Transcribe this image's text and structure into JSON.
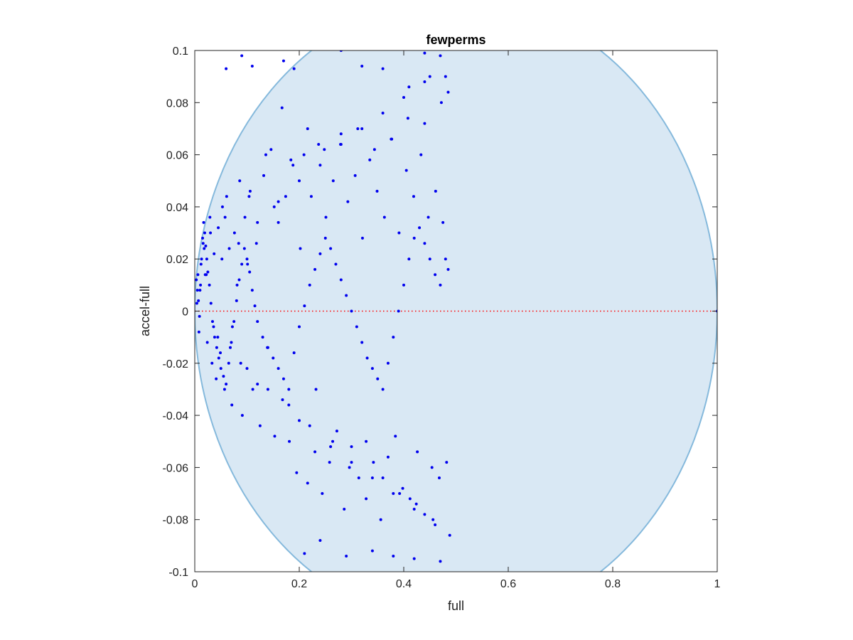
{
  "chart_data": {
    "type": "scatter",
    "title": "fewperms",
    "xlabel": "full",
    "ylabel": "accel-full",
    "xlim": [
      0,
      1
    ],
    "ylim": [
      -0.1,
      0.1
    ],
    "xticks": [
      0,
      0.2,
      0.4,
      0.6,
      0.8,
      1
    ],
    "xtick_labels": [
      "0",
      "0.2",
      "0.4",
      "0.6",
      "0.8",
      "1"
    ],
    "yticks": [
      -0.1,
      -0.08,
      -0.06,
      -0.04,
      -0.02,
      0,
      0.02,
      0.04,
      0.06,
      0.08,
      0.1
    ],
    "ytick_labels": [
      "-0.1",
      "-0.08",
      "-0.06",
      "-0.04",
      "-0.02",
      "0",
      "0.02",
      "0.04",
      "0.06",
      "0.08",
      "0.1"
    ],
    "grid": false,
    "region": {
      "description_shape": "ellipse",
      "center": [
        0.5,
        0
      ],
      "x_semi_axis": 0.5,
      "y_semi_axis": 0.12,
      "fill_color": "#d9e8f4",
      "edge_color": "#85b9dc"
    },
    "reference_line": {
      "y": 0,
      "color": "#ff0000",
      "style": "dotted"
    },
    "series": [
      {
        "marker_color": "#0000ee",
        "x": [
          0.003,
          0.005,
          0.007,
          0.009,
          0.011,
          0.013,
          0.015,
          0.017,
          0.019,
          0.021,
          0.023,
          0.025,
          0.028,
          0.031,
          0.034,
          0.038,
          0.042,
          0.046,
          0.05,
          0.055,
          0.06,
          0.065,
          0.07,
          0.075,
          0.08,
          0.085,
          0.09,
          0.095,
          0.1,
          0.105,
          0.11,
          0.115,
          0.12,
          0.13,
          0.14,
          0.15,
          0.16,
          0.17,
          0.18,
          0.19,
          0.2,
          0.21,
          0.22,
          0.23,
          0.24,
          0.25,
          0.26,
          0.27,
          0.28,
          0.29,
          0.3,
          0.31,
          0.32,
          0.33,
          0.34,
          0.35,
          0.36,
          0.37,
          0.38,
          0.39,
          0.4,
          0.41,
          0.42,
          0.43,
          0.44,
          0.45,
          0.46,
          0.47,
          0.48,
          0.485,
          0.004,
          0.008,
          0.012,
          0.016,
          0.02,
          0.024,
          0.029,
          0.033,
          0.037,
          0.041,
          0.045,
          0.049,
          0.053,
          0.057,
          0.061,
          0.066,
          0.071,
          0.076,
          0.081,
          0.086,
          0.091,
          0.096,
          0.101,
          0.106,
          0.111,
          0.118,
          0.125,
          0.132,
          0.139,
          0.146,
          0.153,
          0.16,
          0.167,
          0.174,
          0.181,
          0.188,
          0.195,
          0.202,
          0.209,
          0.216,
          0.223,
          0.23,
          0.237,
          0.244,
          0.251,
          0.258,
          0.265,
          0.272,
          0.279,
          0.286,
          0.293,
          0.3,
          0.307,
          0.314,
          0.321,
          0.328,
          0.335,
          0.342,
          0.349,
          0.356,
          0.363,
          0.37,
          0.377,
          0.384,
          0.391,
          0.398,
          0.405,
          0.412,
          0.419,
          0.426,
          0.433,
          0.44,
          0.447,
          0.454,
          0.461,
          0.468,
          0.475,
          0.482,
          0.006,
          0.018,
          0.03,
          0.044,
          0.058,
          0.072,
          0.088,
          0.104,
          0.12,
          0.136,
          0.152,
          0.168,
          0.184,
          0.2,
          0.216,
          0.232,
          0.248,
          0.264,
          0.28,
          0.296,
          0.312,
          0.328,
          0.344,
          0.36,
          0.376,
          0.392,
          0.408,
          0.424,
          0.44,
          0.456,
          0.472,
          0.488,
          0.01,
          0.022,
          0.036,
          0.052,
          0.068,
          0.084,
          0.1,
          0.12,
          0.14,
          0.16,
          0.18,
          0.2,
          0.22,
          0.24,
          0.26,
          0.28,
          0.3,
          0.32,
          0.34,
          0.36,
          0.38,
          0.4,
          0.42,
          0.44,
          0.46,
          0.48,
          0.06,
          0.09,
          0.11,
          0.17,
          0.19,
          0.28,
          0.32,
          0.36,
          0.44,
          0.47,
          0.21,
          0.24,
          0.29,
          0.34,
          0.38,
          0.42,
          0.47,
          0.41,
          0.45,
          0.485,
          1.0
        ],
        "y": [
          0.012,
          0.008,
          0.004,
          -0.002,
          0.01,
          0.02,
          0.028,
          0.034,
          0.03,
          0.025,
          0.02,
          0.015,
          0.01,
          0.003,
          -0.004,
          -0.01,
          -0.014,
          -0.018,
          -0.022,
          -0.025,
          -0.028,
          -0.02,
          -0.012,
          -0.004,
          0.004,
          0.012,
          0.018,
          0.024,
          0.02,
          0.015,
          0.008,
          0.002,
          -0.004,
          -0.01,
          -0.014,
          -0.018,
          -0.022,
          -0.026,
          -0.03,
          -0.016,
          -0.006,
          0.002,
          0.01,
          0.016,
          0.022,
          0.028,
          0.024,
          0.018,
          0.012,
          0.006,
          0.0,
          -0.006,
          -0.012,
          -0.018,
          -0.022,
          -0.026,
          -0.03,
          -0.02,
          -0.01,
          0.0,
          0.01,
          0.02,
          0.028,
          0.032,
          0.026,
          0.02,
          0.014,
          0.01,
          0.02,
          0.016,
          0.003,
          -0.008,
          0.018,
          0.026,
          0.014,
          -0.012,
          0.036,
          -0.02,
          0.022,
          -0.026,
          0.032,
          -0.016,
          0.04,
          -0.03,
          0.044,
          0.024,
          -0.036,
          0.03,
          0.01,
          0.05,
          -0.04,
          0.036,
          0.018,
          0.046,
          -0.03,
          0.026,
          -0.044,
          0.052,
          -0.014,
          0.062,
          -0.048,
          0.034,
          0.078,
          0.044,
          -0.05,
          0.056,
          -0.062,
          0.024,
          0.06,
          -0.066,
          0.044,
          -0.054,
          0.064,
          -0.07,
          0.036,
          -0.058,
          0.05,
          -0.046,
          0.064,
          -0.076,
          0.042,
          -0.052,
          0.052,
          -0.064,
          0.028,
          -0.072,
          0.058,
          -0.058,
          0.046,
          -0.08,
          0.036,
          -0.056,
          0.066,
          -0.048,
          0.03,
          -0.068,
          0.054,
          -0.072,
          0.044,
          -0.054,
          0.06,
          -0.078,
          0.036,
          -0.06,
          0.046,
          -0.064,
          0.034,
          -0.058,
          0.014,
          0.024,
          0.03,
          -0.01,
          0.036,
          -0.006,
          -0.02,
          0.044,
          -0.028,
          0.06,
          0.04,
          -0.034,
          0.058,
          -0.042,
          0.07,
          -0.03,
          0.062,
          -0.05,
          0.068,
          -0.06,
          0.07,
          -0.05,
          0.062,
          -0.064,
          0.066,
          -0.07,
          0.074,
          -0.074,
          0.072,
          -0.08,
          0.08,
          -0.086,
          0.008,
          0.014,
          -0.006,
          0.02,
          -0.014,
          0.026,
          -0.022,
          0.034,
          -0.03,
          0.042,
          -0.036,
          0.05,
          -0.044,
          0.056,
          -0.052,
          0.064,
          -0.058,
          0.07,
          -0.064,
          0.076,
          -0.07,
          0.082,
          -0.076,
          0.088,
          -0.082,
          0.09,
          0.093,
          0.098,
          0.094,
          0.096,
          0.093,
          0.1,
          0.094,
          0.093,
          0.099,
          0.098,
          -0.093,
          -0.088,
          -0.094,
          -0.092,
          -0.094,
          -0.095,
          -0.096,
          0.086,
          0.09,
          0.084,
          0.0
        ]
      }
    ]
  }
}
